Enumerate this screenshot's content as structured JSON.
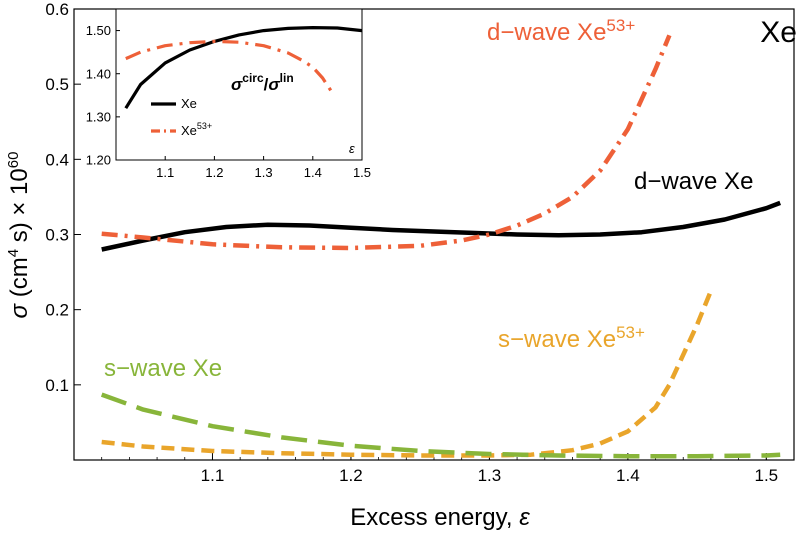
{
  "chart_data": [
    {
      "type": "line",
      "title": "Xe",
      "xlabel_text": "Excess energy, ",
      "xlabel_sym": "ε",
      "ylabel": {
        "sym": "σ",
        "t1": " (cm",
        "sup": "4",
        "t2": " s) × 10",
        "sup2": "60"
      },
      "xlim": [
        1.0,
        1.52
      ],
      "ylim": [
        0.0,
        0.6
      ],
      "xticks": [
        "1.1",
        "1.2",
        "1.3",
        "1.4",
        "1.5"
      ],
      "yticks": [
        "0.1",
        "0.2",
        "0.3",
        "0.4",
        "0.5",
        "0.6"
      ],
      "colors": {
        "black": "#000000",
        "red": "#ee6038",
        "orange": "#e9a52b",
        "green": "#88b53a"
      },
      "series": [
        {
          "name": "d-wave Xe",
          "label_text": "d−wave Xe",
          "color": "#000000",
          "dash": "solid",
          "x": [
            1.02,
            1.05,
            1.08,
            1.11,
            1.14,
            1.17,
            1.2,
            1.23,
            1.26,
            1.29,
            1.32,
            1.35,
            1.38,
            1.41,
            1.44,
            1.47,
            1.5,
            1.51
          ],
          "y": [
            0.28,
            0.292,
            0.303,
            0.31,
            0.313,
            0.312,
            0.309,
            0.306,
            0.304,
            0.302,
            0.3,
            0.299,
            0.3,
            0.303,
            0.31,
            0.32,
            0.335,
            0.342
          ]
        },
        {
          "name": "d-wave Xe53+",
          "label_text": "d−wave Xe",
          "label_sup": "53+",
          "color": "#ee6038",
          "dash": "dashdot",
          "x": [
            1.02,
            1.05,
            1.1,
            1.15,
            1.2,
            1.25,
            1.28,
            1.3,
            1.32,
            1.34,
            1.36,
            1.38,
            1.4,
            1.41,
            1.42,
            1.43
          ],
          "y": [
            0.301,
            0.296,
            0.287,
            0.283,
            0.282,
            0.285,
            0.292,
            0.3,
            0.312,
            0.328,
            0.35,
            0.385,
            0.44,
            0.48,
            0.52,
            0.565
          ]
        },
        {
          "name": "s-wave Xe53+",
          "label_text": "s−wave Xe",
          "label_sup": "53+",
          "color": "#e9a52b",
          "dash": "dashed",
          "x": [
            1.02,
            1.05,
            1.1,
            1.15,
            1.2,
            1.25,
            1.3,
            1.33,
            1.36,
            1.38,
            1.4,
            1.42,
            1.43,
            1.44,
            1.45,
            1.46
          ],
          "y": [
            0.024,
            0.018,
            0.012,
            0.009,
            0.007,
            0.006,
            0.006,
            0.007,
            0.013,
            0.022,
            0.038,
            0.07,
            0.1,
            0.14,
            0.18,
            0.225
          ]
        },
        {
          "name": "s-wave Xe",
          "label_text": "s−wave Xe",
          "color": "#88b53a",
          "dash": "longdash",
          "x": [
            1.02,
            1.05,
            1.1,
            1.15,
            1.2,
            1.25,
            1.3,
            1.35,
            1.4,
            1.45,
            1.5,
            1.51
          ],
          "y": [
            0.087,
            0.067,
            0.045,
            0.03,
            0.019,
            0.012,
            0.008,
            0.006,
            0.005,
            0.005,
            0.006,
            0.007
          ]
        }
      ]
    },
    {
      "type": "line",
      "role": "inset",
      "annotation": {
        "sym": "σ",
        "sup1": "circ",
        "slash": "/",
        "sup2": "lin"
      },
      "xlabel_sym": "ε",
      "xlim": [
        1.0,
        1.5
      ],
      "ylim": [
        1.2,
        1.55
      ],
      "xticks": [
        "1.1",
        "1.2",
        "1.3",
        "1.4",
        "1.5"
      ],
      "yticks": [
        "1.20",
        "1.30",
        "1.40",
        "1.50"
      ],
      "legend": [
        {
          "label": "Xe",
          "color": "#000000"
        },
        {
          "label": "Xe",
          "sup": "53+",
          "color": "#ee6038"
        }
      ],
      "series": [
        {
          "name": "Xe",
          "color": "#000000",
          "dash": "solid",
          "x": [
            1.02,
            1.05,
            1.1,
            1.15,
            1.2,
            1.25,
            1.3,
            1.35,
            1.4,
            1.45,
            1.5
          ],
          "y": [
            1.32,
            1.375,
            1.425,
            1.455,
            1.475,
            1.49,
            1.5,
            1.505,
            1.507,
            1.506,
            1.5
          ]
        },
        {
          "name": "Xe53+",
          "color": "#ee6038",
          "dash": "dashdot",
          "x": [
            1.02,
            1.05,
            1.1,
            1.15,
            1.2,
            1.25,
            1.3,
            1.35,
            1.38,
            1.4,
            1.42,
            1.44
          ],
          "y": [
            1.435,
            1.45,
            1.465,
            1.472,
            1.475,
            1.473,
            1.465,
            1.448,
            1.43,
            1.415,
            1.39,
            1.355
          ]
        }
      ]
    }
  ]
}
